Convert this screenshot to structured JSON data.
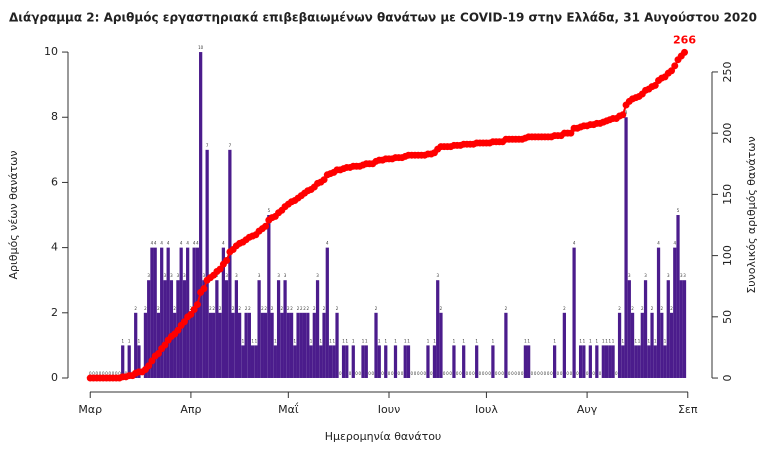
{
  "chart_data": {
    "type": "bar",
    "title": "Διάγραμμα 2: Αριθμός εργαστηριακά επιβεβαιωμένων θανάτων με COVID-19 στην Ελλάδα, 31 Αυγούστου 2020",
    "x_label": "Ημερομηνία θανάτου",
    "y_label": "Αριθμός νέων θανάτων",
    "y2_label": "Συνολικός αριθμός θανάτων",
    "x": [
      0,
      1,
      2,
      3,
      4,
      5,
      6,
      7,
      8,
      9,
      10,
      11,
      12,
      13,
      14,
      15,
      16,
      17,
      18,
      19,
      20,
      21,
      22,
      23,
      24,
      25,
      26,
      27,
      28,
      29,
      30,
      31,
      32,
      33,
      34,
      35,
      36,
      37,
      38,
      39,
      40,
      41,
      42,
      43,
      44,
      45,
      46,
      47,
      48,
      49,
      50,
      51,
      52,
      53,
      54,
      55,
      56,
      57,
      58,
      59,
      60,
      61,
      62,
      63,
      64,
      65,
      66,
      67,
      68,
      69,
      70,
      71,
      72,
      73,
      74,
      75,
      76,
      77,
      78,
      79,
      80,
      81,
      82,
      83,
      84,
      85,
      86,
      87,
      88,
      89,
      90,
      91,
      92,
      93,
      94,
      95,
      96,
      97,
      98,
      99,
      100,
      101,
      102,
      103,
      104,
      105,
      106,
      107,
      108,
      109,
      110,
      111,
      112,
      113,
      114,
      115,
      116,
      117,
      118,
      119,
      120,
      121,
      122,
      123,
      124,
      125,
      126,
      127,
      128,
      129,
      130,
      131,
      132,
      133,
      134,
      135,
      136,
      137,
      138,
      139,
      140,
      141,
      142,
      143,
      144,
      145,
      146,
      147,
      148,
      149,
      150,
      151,
      152,
      153,
      154,
      155,
      156,
      157,
      158,
      159,
      160,
      161,
      162,
      163,
      164,
      165,
      166,
      167,
      168,
      169,
      170,
      171,
      172,
      173,
      174,
      175,
      176,
      177,
      178,
      179,
      180,
      181,
      182,
      183
    ],
    "series": [
      {
        "type": "bar",
        "color": "#4b1c8c",
        "values": [
          0,
          0,
          0,
          0,
          0,
          0,
          0,
          0,
          0,
          0,
          1,
          0,
          1,
          0,
          2,
          1,
          0,
          2,
          3,
          4,
          4,
          2,
          4,
          3,
          4,
          3,
          2,
          3,
          4,
          3,
          4,
          2,
          4,
          4,
          10,
          3,
          7,
          2,
          2,
          3,
          2,
          4,
          3,
          7,
          2,
          3,
          2,
          1,
          2,
          2,
          1,
          1,
          3,
          2,
          2,
          5,
          2,
          1,
          3,
          2,
          3,
          2,
          2,
          1,
          2,
          2,
          2,
          2,
          1,
          2,
          3,
          1,
          2,
          4,
          1,
          1,
          2,
          0,
          1,
          1,
          0,
          1,
          0,
          0,
          1,
          1,
          0,
          0,
          2,
          1,
          0,
          1,
          0,
          0,
          1,
          0,
          0,
          1,
          1,
          0,
          0,
          0,
          0,
          0,
          1,
          0,
          1,
          3,
          2,
          0,
          0,
          0,
          1,
          0,
          0,
          1,
          0,
          0,
          0,
          1,
          0,
          0,
          0,
          0,
          1,
          0,
          0,
          0,
          2,
          0,
          0,
          0,
          0,
          0,
          1,
          1,
          0,
          0,
          0,
          0,
          0,
          0,
          0,
          1,
          0,
          0,
          2,
          0,
          0,
          4,
          0,
          1,
          1,
          0,
          1,
          0,
          1,
          0,
          1,
          1,
          1,
          1,
          0,
          2,
          1,
          8,
          3,
          2,
          1,
          1,
          2,
          3,
          1,
          2,
          1,
          4,
          2,
          1,
          3,
          2,
          4,
          5,
          3,
          3
        ]
      },
      {
        "type": "line",
        "axis": "y2",
        "color": "#ff0000",
        "values": [
          0,
          0,
          0,
          0,
          0,
          0,
          0,
          0,
          0,
          0,
          1,
          1,
          2,
          2,
          4,
          5,
          5,
          7,
          10,
          14,
          18,
          20,
          24,
          27,
          31,
          34,
          36,
          39,
          43,
          46,
          50,
          52,
          56,
          60,
          70,
          73,
          80,
          82,
          84,
          87,
          89,
          93,
          96,
          103,
          105,
          108,
          110,
          111,
          113,
          115,
          116,
          117,
          120,
          122,
          124,
          129,
          131,
          132,
          135,
          137,
          140,
          142,
          144,
          145,
          147,
          149,
          151,
          153,
          154,
          156,
          159,
          160,
          162,
          166,
          167,
          168,
          170,
          170,
          171,
          172,
          172,
          173,
          173,
          173,
          174,
          175,
          175,
          175,
          177,
          178,
          178,
          179,
          179,
          179,
          180,
          180,
          180,
          181,
          182,
          182,
          182,
          182,
          182,
          182,
          183,
          183,
          184,
          187,
          189,
          189,
          189,
          189,
          190,
          190,
          190,
          191,
          191,
          191,
          191,
          192,
          192,
          192,
          192,
          192,
          193,
          193,
          193,
          193,
          195,
          195,
          195,
          195,
          195,
          195,
          196,
          197,
          197,
          197,
          197,
          197,
          197,
          197,
          197,
          198,
          198,
          198,
          200,
          200,
          200,
          204,
          204,
          205,
          206,
          206,
          207,
          207,
          208,
          208,
          209,
          210,
          211,
          212,
          212,
          214,
          215,
          223,
          226,
          228,
          229,
          230,
          232,
          235,
          236,
          238,
          239,
          243,
          245,
          246,
          249,
          251,
          255,
          260,
          263,
          266
        ]
      }
    ],
    "xlim": [
      -5,
      189
    ],
    "xticks": [
      {
        "value": 0,
        "label": "Μαρ"
      },
      {
        "value": 31,
        "label": "Απρ"
      },
      {
        "value": 61,
        "label": "Μαΐ"
      },
      {
        "value": 92,
        "label": "Ιουν"
      },
      {
        "value": 122,
        "label": "Ιουλ"
      },
      {
        "value": 153,
        "label": "Αυγ"
      },
      {
        "value": 184,
        "label": "Σεπ"
      }
    ],
    "ylim": [
      -0.43,
      10.37
    ],
    "yticks": [
      0,
      2,
      4,
      6,
      8,
      10
    ],
    "y2lim": [
      -11.4,
      276.1
    ],
    "y2ticks": [
      0,
      50,
      100,
      150,
      200,
      250
    ]
  }
}
